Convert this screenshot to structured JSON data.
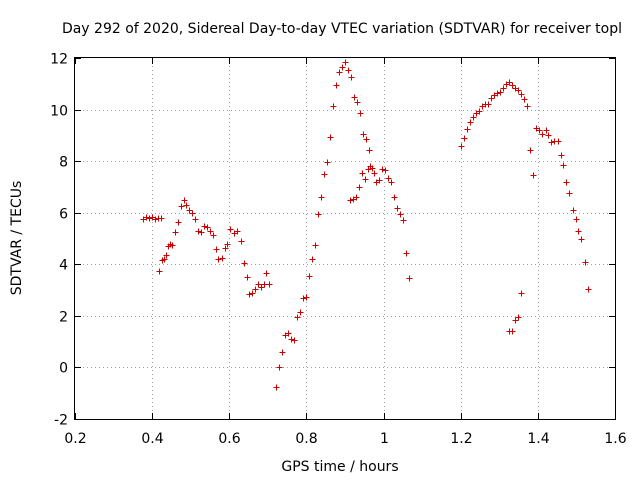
{
  "chart_data": {
    "type": "scatter",
    "title": "Day 292 of 2020, Sidereal Day-to-day VTEC variation (SDTVAR) for receiver topl",
    "xlabel": "GPS time / hours",
    "ylabel": "SDTVAR / TECUs",
    "xlim": [
      0.2,
      1.6
    ],
    "ylim": [
      -2,
      12
    ],
    "xticks": [
      0.2,
      0.4,
      0.6,
      0.8,
      1.0,
      1.2,
      1.4,
      1.6
    ],
    "xtick_labels": [
      "0.2",
      "0.4",
      "0.6",
      "0.8",
      "1",
      "1.2",
      "1.4",
      "1.6"
    ],
    "yticks": [
      -2,
      0,
      2,
      4,
      6,
      8,
      10,
      12
    ],
    "ytick_labels": [
      "-2",
      "0",
      "2",
      "4",
      "6",
      "8",
      "10",
      "12"
    ],
    "grid": true,
    "marker": "+",
    "color": "#cc0000",
    "series": [
      {
        "name": "SDTVAR",
        "points": [
          [
            0.375,
            5.75
          ],
          [
            0.383,
            5.85
          ],
          [
            0.391,
            5.8
          ],
          [
            0.399,
            5.85
          ],
          [
            0.407,
            5.75
          ],
          [
            0.415,
            5.8
          ],
          [
            0.418,
            3.75
          ],
          [
            0.423,
            5.8
          ],
          [
            0.426,
            4.15
          ],
          [
            0.431,
            4.2
          ],
          [
            0.435,
            4.35
          ],
          [
            0.441,
            4.7
          ],
          [
            0.447,
            4.8
          ],
          [
            0.452,
            4.75
          ],
          [
            0.458,
            5.25
          ],
          [
            0.466,
            5.65
          ],
          [
            0.474,
            6.25
          ],
          [
            0.482,
            6.5
          ],
          [
            0.489,
            6.3
          ],
          [
            0.496,
            6.1
          ],
          [
            0.503,
            6.0
          ],
          [
            0.51,
            5.75
          ],
          [
            0.518,
            5.3
          ],
          [
            0.526,
            5.25
          ],
          [
            0.534,
            5.5
          ],
          [
            0.542,
            5.45
          ],
          [
            0.55,
            5.3
          ],
          [
            0.557,
            5.15
          ],
          [
            0.565,
            4.6
          ],
          [
            0.572,
            4.2
          ],
          [
            0.58,
            4.25
          ],
          [
            0.588,
            4.65
          ],
          [
            0.595,
            4.8
          ],
          [
            0.603,
            5.35
          ],
          [
            0.611,
            5.2
          ],
          [
            0.619,
            5.3
          ],
          [
            0.63,
            4.9
          ],
          [
            0.638,
            4.05
          ],
          [
            0.645,
            3.5
          ],
          [
            0.652,
            2.85
          ],
          [
            0.66,
            2.9
          ],
          [
            0.667,
            3.05
          ],
          [
            0.675,
            3.25
          ],
          [
            0.683,
            3.1
          ],
          [
            0.691,
            3.25
          ],
          [
            0.696,
            3.65
          ],
          [
            0.703,
            3.25
          ],
          [
            0.722,
            -0.75
          ],
          [
            0.73,
            0.0
          ],
          [
            0.737,
            0.6
          ],
          [
            0.744,
            1.25
          ],
          [
            0.752,
            1.35
          ],
          [
            0.76,
            1.1
          ],
          [
            0.768,
            1.05
          ],
          [
            0.775,
            1.95
          ],
          [
            0.783,
            2.15
          ],
          [
            0.791,
            2.7
          ],
          [
            0.798,
            2.75
          ],
          [
            0.806,
            3.55
          ],
          [
            0.814,
            4.2
          ],
          [
            0.822,
            4.75
          ],
          [
            0.829,
            5.95
          ],
          [
            0.837,
            6.6
          ],
          [
            0.845,
            7.5
          ],
          [
            0.853,
            7.95
          ],
          [
            0.86,
            8.95
          ],
          [
            0.868,
            10.15
          ],
          [
            0.876,
            10.95
          ],
          [
            0.884,
            11.45
          ],
          [
            0.892,
            11.65
          ],
          [
            0.9,
            11.85
          ],
          [
            0.907,
            11.55
          ],
          [
            0.913,
            6.5
          ],
          [
            0.915,
            11.25
          ],
          [
            0.92,
            6.55
          ],
          [
            0.923,
            10.5
          ],
          [
            0.928,
            6.6
          ],
          [
            0.931,
            10.3
          ],
          [
            0.936,
            7.0
          ],
          [
            0.939,
            9.85
          ],
          [
            0.943,
            7.55
          ],
          [
            0.946,
            9.05
          ],
          [
            0.951,
            7.3
          ],
          [
            0.954,
            8.85
          ],
          [
            0.959,
            7.7
          ],
          [
            0.962,
            8.45
          ],
          [
            0.966,
            7.8
          ],
          [
            0.97,
            7.75
          ],
          [
            0.974,
            7.55
          ],
          [
            0.981,
            7.2
          ],
          [
            0.989,
            7.25
          ],
          [
            0.997,
            7.7
          ],
          [
            1.004,
            7.65
          ],
          [
            1.012,
            7.35
          ],
          [
            1.02,
            7.2
          ],
          [
            1.028,
            6.6
          ],
          [
            1.035,
            6.2
          ],
          [
            1.043,
            5.95
          ],
          [
            1.051,
            5.7
          ],
          [
            1.059,
            4.45
          ],
          [
            1.067,
            3.45
          ],
          [
            1.2,
            8.6
          ],
          [
            1.208,
            8.9
          ],
          [
            1.216,
            9.25
          ],
          [
            1.224,
            9.5
          ],
          [
            1.231,
            9.7
          ],
          [
            1.239,
            9.85
          ],
          [
            1.247,
            9.95
          ],
          [
            1.255,
            10.15
          ],
          [
            1.262,
            10.2
          ],
          [
            1.27,
            10.2
          ],
          [
            1.278,
            10.45
          ],
          [
            1.286,
            10.55
          ],
          [
            1.294,
            10.65
          ],
          [
            1.301,
            10.7
          ],
          [
            1.309,
            10.85
          ],
          [
            1.317,
            11.0
          ],
          [
            1.325,
            1.4
          ],
          [
            1.325,
            11.05
          ],
          [
            1.333,
            1.4
          ],
          [
            1.333,
            10.95
          ],
          [
            1.34,
            1.85
          ],
          [
            1.341,
            10.85
          ],
          [
            1.348,
            1.95
          ],
          [
            1.349,
            10.75
          ],
          [
            1.355,
            2.9
          ],
          [
            1.357,
            10.6
          ],
          [
            1.364,
            10.4
          ],
          [
            1.372,
            10.15
          ],
          [
            1.38,
            8.45
          ],
          [
            1.388,
            7.45
          ],
          [
            1.396,
            9.3
          ],
          [
            1.404,
            9.2
          ],
          [
            1.412,
            9.05
          ],
          [
            1.42,
            9.2
          ],
          [
            1.427,
            9.0
          ],
          [
            1.435,
            8.75
          ],
          [
            1.443,
            8.8
          ],
          [
            1.451,
            8.8
          ],
          [
            1.459,
            8.25
          ],
          [
            1.466,
            7.85
          ],
          [
            1.474,
            7.2
          ],
          [
            1.482,
            6.75
          ],
          [
            1.49,
            6.1
          ],
          [
            1.498,
            5.75
          ],
          [
            1.505,
            5.3
          ],
          [
            1.513,
            5.0
          ],
          [
            1.521,
            4.1
          ],
          [
            1.529,
            3.05
          ]
        ]
      }
    ]
  }
}
